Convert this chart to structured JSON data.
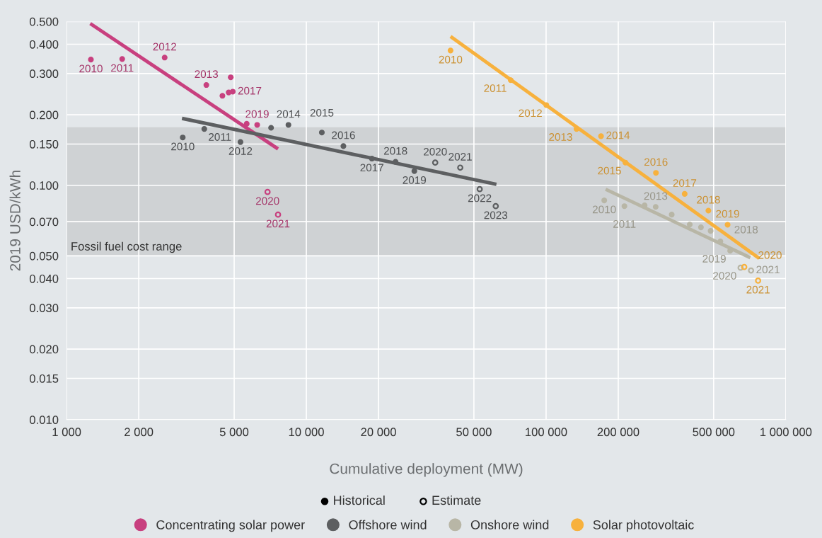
{
  "chart_data": {
    "type": "scatter",
    "xlabel": "Cumulative deployment (MW)",
    "ylabel": "2019 USD/kWh",
    "log": "xy",
    "grid": true,
    "legend": "bottom",
    "marker": "circle",
    "xlim": [
      1000,
      1000000
    ],
    "ylim": [
      0.01,
      0.5
    ],
    "xticks": [
      {
        "value": 1000,
        "label": "1 000"
      },
      {
        "value": 2000,
        "label": "2 000"
      },
      {
        "value": 5000,
        "label": "5 000"
      },
      {
        "value": 10000,
        "label": "10 000"
      },
      {
        "value": 20000,
        "label": "20 000"
      },
      {
        "value": 50000,
        "label": "50 000"
      },
      {
        "value": 100000,
        "label": "100 000"
      },
      {
        "value": 200000,
        "label": "200 000"
      },
      {
        "value": 500000,
        "label": "500 000"
      },
      {
        "value": 1000000,
        "label": "1 000 000"
      }
    ],
    "yticks": [
      {
        "value": 0.01,
        "label": "0.010"
      },
      {
        "value": 0.015,
        "label": "0.015"
      },
      {
        "value": 0.02,
        "label": "0.020"
      },
      {
        "value": 0.03,
        "label": "0.030"
      },
      {
        "value": 0.04,
        "label": "0.040"
      },
      {
        "value": 0.05,
        "label": "0.050"
      },
      {
        "value": 0.07,
        "label": "0.070"
      },
      {
        "value": 0.1,
        "label": "0.100"
      },
      {
        "value": 0.15,
        "label": "0.150"
      },
      {
        "value": 0.2,
        "label": "0.200"
      },
      {
        "value": 0.3,
        "label": "0.300"
      },
      {
        "value": 0.4,
        "label": "0.400"
      },
      {
        "value": 0.5,
        "label": "0.500"
      }
    ],
    "bands": [
      {
        "axis": "y",
        "from": 0.05,
        "to": 0.177,
        "label": "Fossil fuel cost range",
        "color": "#cfd2d4"
      }
    ],
    "series": [
      {
        "type": "line",
        "marker": "none",
        "color": "#c8407f",
        "x": [
          1255,
          7620
        ],
        "values": [
          0.49,
          0.143
        ]
      },
      {
        "type": "line",
        "marker": "none",
        "color": "#5d5f61",
        "x": [
          3030,
          62070
        ],
        "values": [
          0.193,
          0.101
        ]
      },
      {
        "type": "line",
        "marker": "none",
        "color": "#b8b6a6",
        "x": [
          177200,
          710800
        ],
        "values": [
          0.0962,
          0.0491
        ]
      },
      {
        "type": "line",
        "marker": "none",
        "color": "#f7b13d",
        "x": [
          39950,
          774400
        ],
        "values": [
          0.432,
          0.0488
        ]
      },
      {
        "name": "Concentrating solar power",
        "color": "#c8407f",
        "x": [
          1263,
          1706,
          2565,
          3828,
          4467,
          4742,
          4838,
          4934,
          5640,
          6237
        ],
        "values": [
          0.344,
          0.346,
          0.351,
          0.268,
          0.241,
          0.249,
          0.289,
          0.251,
          0.183,
          0.181
        ]
      },
      {
        "color": "#c8407f",
        "x": [
          6890,
          7620
        ],
        "values": [
          0.0937,
          0.075
        ]
      },
      {
        "name": "Offshore wind",
        "color": "#5d5f61",
        "x": [
          3051,
          3753,
          5313,
          7128,
          8421,
          11606,
          14277,
          18770,
          23560,
          28220
        ],
        "values": [
          0.16,
          0.174,
          0.153,
          0.176,
          0.181,
          0.168,
          0.147,
          0.13,
          0.126,
          0.115
        ]
      },
      {
        "color": "#5d5f61",
        "x": [
          34480,
          43850,
          52860,
          61660
        ],
        "values": [
          0.125,
          0.119,
          0.0963,
          0.0815
        ]
      },
      {
        "name": "Onshore wind",
        "color": "#b8b6a6",
        "x": [
          174800,
          212200,
          257600,
          286500,
          334200,
          397400,
          442500,
          485600,
          533300,
          585900
        ],
        "values": [
          0.0862,
          0.0815,
          0.0821,
          0.0809,
          0.075,
          0.068,
          0.0662,
          0.0639,
          0.0576,
          0.0526
        ]
      },
      {
        "color": "#b8b6a6",
        "x": [
          647600,
          715900
        ],
        "values": [
          0.0445,
          0.0433
        ]
      },
      {
        "name": "Solar photovoltaic",
        "color": "#f7b13d",
        "x": [
          39950,
          71240,
          100200,
          134000,
          169500,
          214200,
          287200,
          378500,
          475300,
          571600
        ],
        "values": [
          0.376,
          0.281,
          0.22,
          0.174,
          0.162,
          0.125,
          0.113,
          0.0919,
          0.078,
          0.0679
        ]
      },
      {
        "color": "#f7b13d",
        "x": [
          670600,
          766100
        ],
        "values": [
          0.0448,
          0.0392
        ]
      }
    ],
    "annotations": [
      "Historical",
      "Estimate",
      {
        "text": "2010",
        "x": 1263,
        "y": 0.344
      },
      {
        "text": "2011",
        "x": 1706,
        "y": 0.346
      },
      {
        "text": "2012",
        "x": 2565,
        "y": 0.351
      },
      {
        "text": "2013",
        "x": 3828,
        "y": 0.268
      },
      {
        "text": "2017",
        "x": 4934,
        "y": 0.251
      },
      {
        "text": "2019",
        "x": 6237,
        "y": 0.181
      },
      {
        "text": "2020",
        "x": 6890,
        "y": 0.0937
      },
      {
        "text": "2021",
        "x": 7620,
        "y": 0.075
      },
      {
        "text": "2010",
        "x": 3051,
        "y": 0.16
      },
      {
        "text": "2011",
        "x": 3753,
        "y": 0.174
      },
      {
        "text": "2012",
        "x": 5313,
        "y": 0.153
      },
      {
        "text": "2014",
        "x": 8421,
        "y": 0.181
      },
      {
        "text": "2015",
        "x": 11606,
        "y": 0.168
      },
      {
        "text": "2016",
        "x": 14277,
        "y": 0.147
      },
      {
        "text": "2017",
        "x": 18770,
        "y": 0.13
      },
      {
        "text": "2018",
        "x": 23560,
        "y": 0.126
      },
      {
        "text": "2019",
        "x": 28220,
        "y": 0.115
      },
      {
        "text": "2020",
        "x": 34480,
        "y": 0.125
      },
      {
        "text": "2021",
        "x": 43850,
        "y": 0.119
      },
      {
        "text": "2022",
        "x": 52860,
        "y": 0.0963
      },
      {
        "text": "2023",
        "x": 61660,
        "y": 0.0815
      },
      {
        "text": "2010",
        "x": 174800,
        "y": 0.0862
      },
      {
        "text": "2011",
        "x": 212200,
        "y": 0.0815
      },
      {
        "text": "2013",
        "x": 286500,
        "y": 0.0809
      },
      {
        "text": "2018",
        "x": 533300,
        "y": 0.0576
      },
      {
        "text": "2019",
        "x": 585900,
        "y": 0.0526
      },
      {
        "text": "2020",
        "x": 647600,
        "y": 0.0445
      },
      {
        "text": "2021",
        "x": 715900,
        "y": 0.0433
      },
      {
        "text": "2010",
        "x": 39950,
        "y": 0.376
      },
      {
        "text": "2011",
        "x": 71240,
        "y": 0.281
      },
      {
        "text": "2012",
        "x": 100200,
        "y": 0.22
      },
      {
        "text": "2013",
        "x": 134000,
        "y": 0.174
      },
      {
        "text": "2014",
        "x": 169500,
        "y": 0.162
      },
      {
        "text": "2015",
        "x": 214200,
        "y": 0.125
      },
      {
        "text": "2016",
        "x": 287200,
        "y": 0.113
      },
      {
        "text": "2017",
        "x": 378500,
        "y": 0.0919
      },
      {
        "text": "2018",
        "x": 475300,
        "y": 0.078
      },
      {
        "text": "2019",
        "x": 571600,
        "y": 0.0679
      },
      {
        "text": "2020",
        "x": 670600,
        "y": 0.0448
      },
      {
        "text": "2021",
        "x": 766100,
        "y": 0.0392
      }
    ]
  }
}
